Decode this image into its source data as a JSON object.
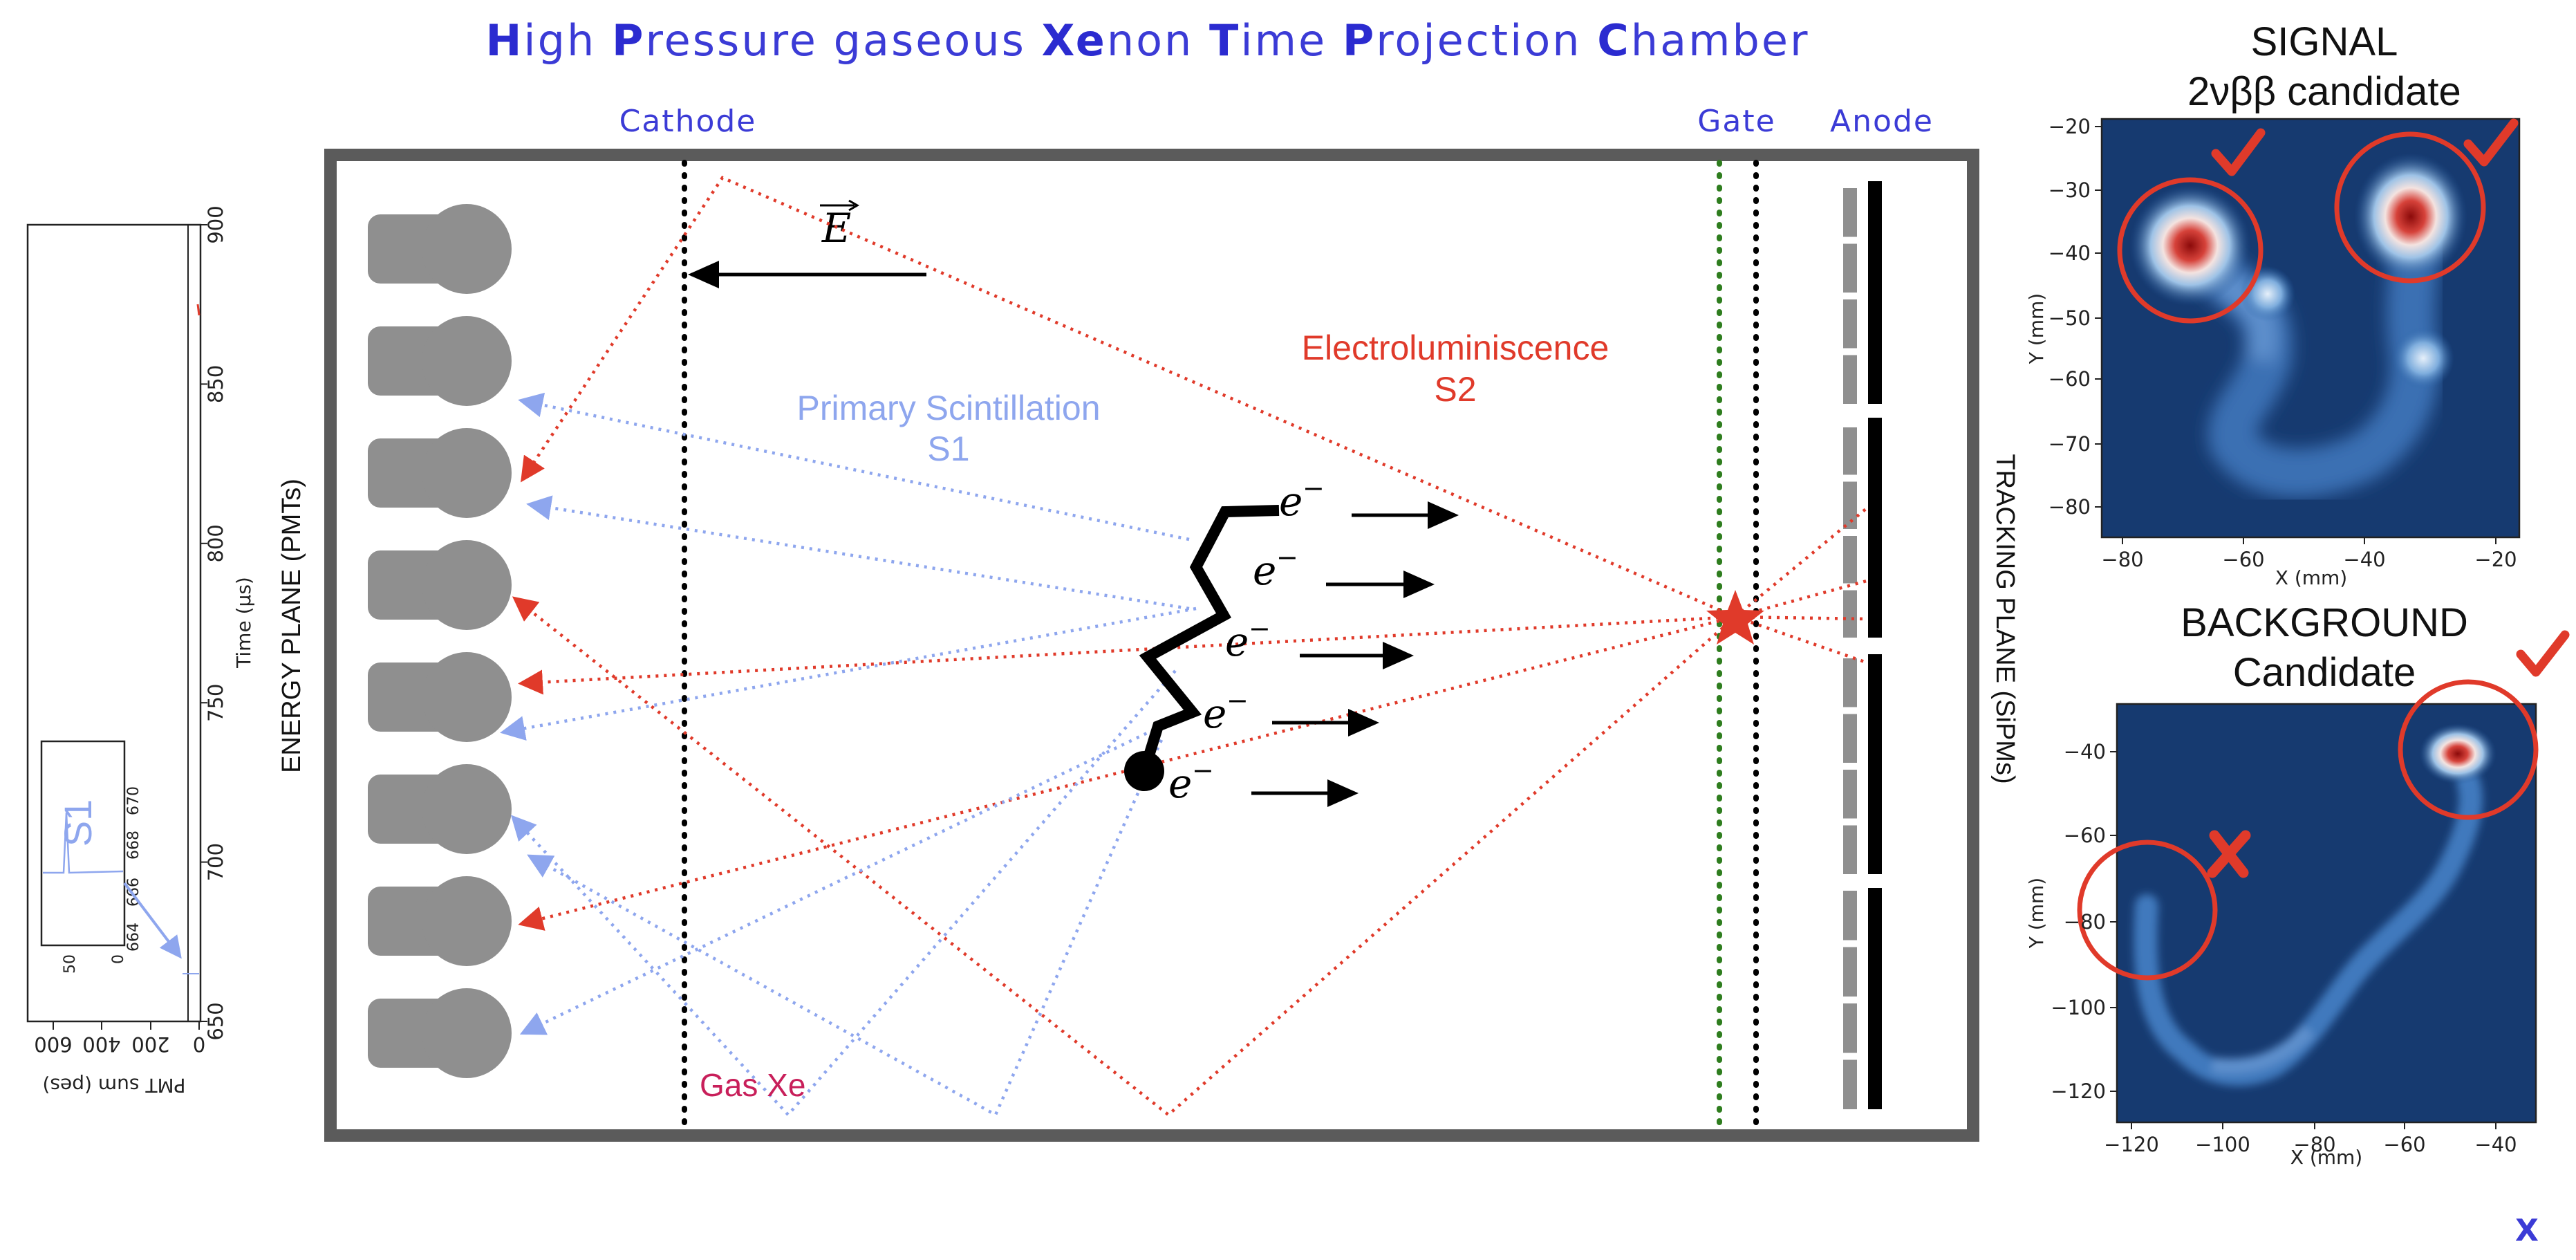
{
  "title": {
    "segments": [
      {
        "cap": "H",
        "rest": "igh "
      },
      {
        "cap": "P",
        "rest": "ressure gaseous "
      },
      {
        "cap": "Xe",
        "rest": "non "
      },
      {
        "cap": "T",
        "rest": "ime "
      },
      {
        "cap": "P",
        "rest": "rojection "
      },
      {
        "cap": "C",
        "rest": "hamber"
      }
    ]
  },
  "diagram": {
    "cathode_label": "Cathode",
    "gate_label": "Gate",
    "anode_label": "Anode",
    "energy_plane_label": "ENERGY PLANE (PMTs)",
    "tracking_plane_label": "TRACKING PLANE (SiPMs)",
    "field_label": "E",
    "s2_label_line1": "Electroluminiscence",
    "s2_label_line2": "S2",
    "s1_label_line1": "Primary Scintillation",
    "s1_label_line2": "S1",
    "gas_label": "Gas Xe",
    "electron_label": "e",
    "electron_charge": "−",
    "pmt_count": 8,
    "colors": {
      "chamber_border": "#5b5b5b",
      "pmt": "#8f8f8f",
      "s1_rays": "#8ea6ee",
      "s2_rays": "#e03a2a",
      "gate_green": "#2e7d1e",
      "accent": "#3b3bd6"
    }
  },
  "waveform": {
    "xlabel": "PMT sum (pes)",
    "ylabel": "Time (µs)",
    "x_ticks": [
      "600",
      "400",
      "200",
      "0"
    ],
    "y_ticks": [
      "650",
      "700",
      "750",
      "800",
      "850",
      "900"
    ],
    "inset_label": "S1",
    "inset_x_ticks": [
      "50",
      "0"
    ],
    "inset_y_ticks": [
      "664",
      "666",
      "668",
      "670"
    ]
  },
  "signal_panel": {
    "title_line1": "SIGNAL",
    "title_line2": "2νββ candidate",
    "xlabel": "X (mm)",
    "ylabel": "Y (mm)",
    "x_ticks": [
      "−80",
      "−60",
      "−40",
      "−20"
    ],
    "y_ticks": [
      "−20",
      "−30",
      "−40",
      "−50",
      "−60",
      "−70",
      "−80"
    ],
    "marks": [
      "check-icon",
      "check-icon"
    ]
  },
  "background_panel": {
    "title_line1": "BACKGROUND",
    "title_line2": "Candidate",
    "xlabel": "X (mm)",
    "ylabel": "Y (mm)",
    "x_ticks": [
      "−120",
      "−100",
      "−80",
      "−60",
      "−40"
    ],
    "y_ticks": [
      "−40",
      "−60",
      "−80",
      "−100",
      "−120"
    ],
    "marks": [
      "check-icon",
      "cross-icon"
    ]
  },
  "corner_glyph": "X"
}
